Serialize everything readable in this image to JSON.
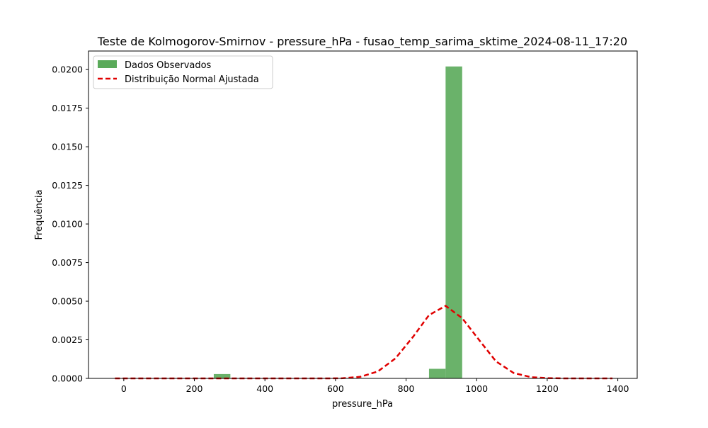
{
  "chart_data": {
    "type": "bar",
    "title": "Teste de Kolmogorov-Smirnov - pressure_hPa - fusao_temp_sarima_sktime_2024-08-11_17:20",
    "xlabel": "pressure_hPa",
    "ylabel": "Frequência",
    "xlim": [
      -100,
      1455
    ],
    "ylim": [
      0,
      0.0212
    ],
    "x_ticks": [
      0,
      200,
      400,
      600,
      800,
      1000,
      1200,
      1400
    ],
    "x_tick_labels": [
      "0",
      "200",
      "400",
      "600",
      "800",
      "1000",
      "1200",
      "1400"
    ],
    "y_ticks": [
      0,
      0.0025,
      0.005,
      0.0075,
      0.01,
      0.0125,
      0.015,
      0.0175,
      0.02
    ],
    "y_tick_labels": [
      "0.0000",
      "0.0025",
      "0.0050",
      "0.0075",
      "0.0100",
      "0.0125",
      "0.0150",
      "0.0175",
      "0.0200"
    ],
    "grid": false,
    "legend_position": "upper left",
    "histogram": {
      "name": "Dados Observados",
      "color": "#5aaa5a",
      "bins": [
        {
          "x0": 255,
          "x1": 302,
          "value": 0.00028
        },
        {
          "x0": 818,
          "x1": 865,
          "value": 2e-05
        },
        {
          "x0": 865,
          "x1": 912,
          "value": 0.00062
        },
        {
          "x0": 912,
          "x1": 959,
          "value": 0.0202
        }
      ]
    },
    "fit_curve": {
      "name": "Distribuição Normal Ajustada",
      "color": "#e00000",
      "style": "dashed",
      "x": [
        -25,
        20,
        70,
        120,
        170,
        220,
        270,
        320,
        370,
        420,
        470,
        520,
        570,
        620,
        670,
        720,
        770,
        820,
        865,
        912,
        959,
        1010,
        1055,
        1105,
        1155,
        1200,
        1250,
        1300,
        1350,
        1385
      ],
      "y": [
        0,
        0,
        0,
        0,
        0,
        0,
        0,
        0,
        0,
        0,
        0,
        0,
        0,
        1e-05,
        0.0001,
        0.00045,
        0.0013,
        0.0027,
        0.0041,
        0.0047,
        0.0039,
        0.0024,
        0.0011,
        0.00035,
        8e-05,
        2e-05,
        0,
        0,
        0,
        0
      ]
    }
  }
}
